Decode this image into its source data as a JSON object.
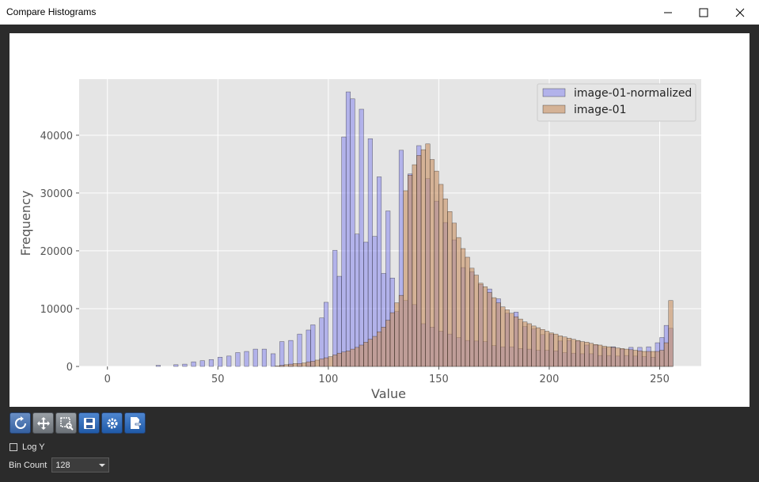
{
  "window": {
    "title": "Compare Histograms"
  },
  "controls": {
    "log_y_label": "Log Y",
    "bin_count_label": "Bin Count",
    "bin_count_value": "128"
  },
  "toolbar": {
    "buttons": [
      {
        "icon": "reset-icon"
      },
      {
        "icon": "pan-icon"
      },
      {
        "icon": "zoom-icon"
      },
      {
        "icon": "save-icon"
      },
      {
        "icon": "settings-icon"
      },
      {
        "icon": "export-icon"
      }
    ]
  },
  "chart_data": {
    "type": "bar",
    "xlabel": "Value",
    "ylabel": "Frequency",
    "xlim": [
      -12.8,
      268.8
    ],
    "ylim": [
      0,
      49700
    ],
    "xticks": [
      0,
      50,
      100,
      150,
      200,
      250
    ],
    "yticks": [
      0,
      10000,
      20000,
      30000,
      40000
    ],
    "grid": true,
    "legend_position": "top-right",
    "bin_width": 2,
    "colors": {
      "normalized": "#8080f0",
      "original": "#c89060",
      "axes_bg": "#e5e5e5"
    },
    "series": [
      {
        "name": "image-01-normalized",
        "bin_starts": [
          22,
          30,
          34,
          38,
          42,
          46,
          50,
          54,
          58,
          62,
          66,
          70,
          74,
          78,
          82,
          86,
          90,
          92,
          96,
          98,
          102,
          104,
          106,
          108,
          110,
          112,
          114,
          116,
          118,
          120,
          122,
          124,
          126,
          128,
          130,
          132,
          134,
          136,
          138,
          140,
          142,
          144,
          146,
          148,
          150,
          152,
          154,
          156,
          158,
          160,
          162,
          164,
          166,
          168,
          170,
          172,
          174,
          176,
          178,
          180,
          182,
          184,
          186,
          188,
          190,
          192,
          194,
          196,
          198,
          200,
          202,
          204,
          206,
          208,
          210,
          212,
          214,
          216,
          218,
          220,
          222,
          224,
          226,
          228,
          230,
          232,
          234,
          236,
          238,
          240,
          242,
          244,
          246,
          248,
          250,
          252,
          254
        ],
        "values": [
          200,
          300,
          400,
          800,
          1000,
          1200,
          1600,
          1800,
          2400,
          2600,
          3000,
          3000,
          2200,
          4300,
          4500,
          5600,
          6300,
          7200,
          8400,
          11100,
          20100,
          15600,
          39700,
          47500,
          46300,
          22900,
          44500,
          21500,
          39400,
          22500,
          32800,
          16100,
          26900,
          15300,
          9500,
          37400,
          11400,
          33300,
          10700,
          38200,
          7400,
          32500,
          6800,
          28600,
          6100,
          24900,
          5600,
          21900,
          5000,
          17100,
          4500,
          16400,
          4400,
          14200,
          4300,
          13400,
          3600,
          11700,
          3400,
          9200,
          3400,
          9400,
          3100,
          6900,
          3000,
          6500,
          2800,
          5500,
          2800,
          5600,
          2700,
          4400,
          2400,
          4500,
          2300,
          4400,
          2200,
          3700,
          2200,
          3700,
          1900,
          3200,
          1900,
          3400,
          1800,
          3000,
          1900,
          3300,
          1800,
          3300,
          1700,
          3400,
          1600,
          4100,
          5000,
          7100,
          6600
        ]
      },
      {
        "name": "image-01",
        "bin_starts": [
          76,
          78,
          80,
          82,
          84,
          86,
          88,
          90,
          92,
          94,
          96,
          98,
          100,
          102,
          104,
          106,
          108,
          110,
          112,
          114,
          116,
          118,
          120,
          122,
          124,
          126,
          128,
          130,
          132,
          134,
          136,
          138,
          140,
          142,
          144,
          146,
          148,
          150,
          152,
          154,
          156,
          158,
          160,
          162,
          164,
          166,
          168,
          170,
          172,
          174,
          176,
          178,
          180,
          182,
          184,
          186,
          188,
          190,
          192,
          194,
          196,
          198,
          200,
          202,
          204,
          206,
          208,
          210,
          212,
          214,
          216,
          218,
          220,
          222,
          224,
          226,
          228,
          230,
          232,
          234,
          236,
          238,
          240,
          242,
          244,
          246,
          248,
          250,
          252,
          254
        ],
        "values": [
          100,
          200,
          300,
          400,
          500,
          500,
          600,
          800,
          900,
          1100,
          1300,
          1500,
          1700,
          2000,
          2300,
          2500,
          2700,
          3000,
          3300,
          3700,
          4200,
          4700,
          5200,
          6000,
          6800,
          8000,
          9300,
          11000,
          12300,
          30400,
          33100,
          34900,
          36500,
          37500,
          38500,
          35800,
          33800,
          31500,
          29000,
          26800,
          24800,
          22300,
          20400,
          18900,
          17000,
          15800,
          14400,
          13800,
          12800,
          11900,
          11000,
          10300,
          9800,
          9200,
          8600,
          8200,
          7700,
          7400,
          7000,
          6700,
          6400,
          6100,
          5800,
          5600,
          5300,
          5100,
          4900,
          4700,
          4500,
          4300,
          4200,
          4000,
          3800,
          3700,
          3500,
          3400,
          3300,
          3200,
          3100,
          3000,
          2900,
          2800,
          2700,
          2600,
          2600,
          2600,
          2600,
          2800,
          4100,
          11400
        ]
      }
    ]
  }
}
